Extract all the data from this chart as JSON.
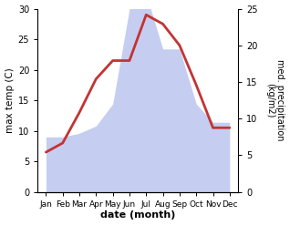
{
  "months": [
    "Jan",
    "Feb",
    "Mar",
    "Apr",
    "May",
    "Jun",
    "Jul",
    "Aug",
    "Sep",
    "Oct",
    "Nov",
    "Dec"
  ],
  "x_positions": [
    0,
    1,
    2,
    3,
    4,
    5,
    6,
    7,
    8,
    9,
    10,
    11
  ],
  "temperature": [
    6.5,
    8.0,
    13.0,
    18.5,
    21.5,
    21.5,
    29.0,
    27.5,
    24.0,
    17.5,
    10.5,
    10.5
  ],
  "precipitation": [
    7.5,
    7.5,
    8.0,
    9.0,
    12.0,
    25.0,
    27.0,
    19.5,
    19.5,
    12.0,
    9.5,
    9.5
  ],
  "temp_color": "#c43333",
  "precip_fill_color": "#c5cef0",
  "temp_ylim": [
    0,
    30
  ],
  "precip_ylim": [
    0,
    25
  ],
  "temp_yticks": [
    0,
    5,
    10,
    15,
    20,
    25,
    30
  ],
  "precip_yticks": [
    0,
    5,
    10,
    15,
    20,
    25
  ],
  "ylabel_left": "max temp (C)",
  "ylabel_right": "med. precipitation\n(kg/m2)",
  "xlabel": "date (month)",
  "bg_color": "#ffffff",
  "line_width": 2.0,
  "xlim": [
    -0.5,
    11.5
  ]
}
